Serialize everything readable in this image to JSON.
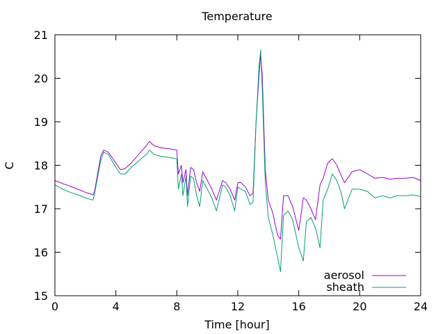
{
  "chart_data": {
    "type": "line",
    "title": "Temperature",
    "xlabel": "Time [hour]",
    "ylabel": "C",
    "xlim": [
      0,
      24
    ],
    "ylim": [
      15,
      21
    ],
    "xticks": [
      0,
      4,
      8,
      12,
      16,
      20,
      24
    ],
    "yticks": [
      15,
      16,
      17,
      18,
      19,
      20,
      21
    ],
    "grid": false,
    "legend": "bottom-right",
    "series": [
      {
        "name": "aerosol",
        "color": "#9400d3",
        "x": [
          0,
          0.5,
          1,
          1.5,
          2,
          2.5,
          2.6,
          3,
          3.2,
          3.5,
          4,
          4.3,
          4.6,
          5,
          5.5,
          6,
          6.2,
          6.5,
          7,
          7.5,
          8,
          8.1,
          8.3,
          8.4,
          8.6,
          8.7,
          8.9,
          9.1,
          9.3,
          9.5,
          9.7,
          10,
          10.3,
          10.6,
          11,
          11.2,
          11.5,
          11.8,
          12,
          12.2,
          12.5,
          12.8,
          13,
          13.2,
          13.4,
          13.5,
          13.6,
          13.8,
          14,
          14.3,
          14.6,
          14.8,
          15,
          15.3,
          15.6,
          16,
          16.3,
          16.5,
          16.8,
          17.1,
          17.4,
          17.6,
          17.9,
          18.2,
          18.5,
          18.8,
          19,
          19.5,
          20,
          20.5,
          21,
          21.5,
          22,
          22.5,
          23,
          23.5,
          24
        ],
        "y": [
          17.65,
          17.58,
          17.52,
          17.45,
          17.38,
          17.32,
          17.4,
          18.2,
          18.35,
          18.3,
          18.05,
          17.9,
          17.92,
          18.05,
          18.25,
          18.45,
          18.55,
          18.45,
          18.4,
          18.38,
          18.35,
          17.8,
          18.0,
          17.6,
          17.9,
          17.3,
          17.95,
          17.9,
          17.6,
          17.4,
          17.85,
          17.65,
          17.45,
          17.2,
          17.65,
          17.6,
          17.45,
          17.2,
          17.6,
          17.6,
          17.5,
          17.3,
          17.35,
          19.0,
          20.1,
          20.55,
          20.1,
          17.9,
          17.2,
          16.9,
          16.4,
          16.3,
          17.3,
          17.3,
          17.05,
          16.5,
          17.25,
          17.2,
          17.0,
          16.75,
          17.55,
          17.7,
          18.05,
          18.15,
          18.0,
          17.75,
          17.6,
          17.85,
          17.9,
          17.8,
          17.7,
          17.72,
          17.68,
          17.7,
          17.7,
          17.72,
          17.65
        ]
      },
      {
        "name": "sheath",
        "color": "#009e73",
        "x": [
          0,
          0.5,
          1,
          1.5,
          2,
          2.5,
          2.6,
          3,
          3.2,
          3.5,
          4,
          4.3,
          4.6,
          5,
          5.5,
          6,
          6.2,
          6.5,
          7,
          7.5,
          8,
          8.1,
          8.3,
          8.4,
          8.6,
          8.7,
          8.9,
          9.1,
          9.3,
          9.5,
          9.7,
          10,
          10.3,
          10.6,
          11,
          11.2,
          11.5,
          11.8,
          12,
          12.2,
          12.5,
          12.8,
          13,
          13.2,
          13.4,
          13.5,
          13.6,
          13.8,
          14,
          14.3,
          14.6,
          14.8,
          15,
          15.3,
          15.6,
          16,
          16.3,
          16.5,
          16.8,
          17.1,
          17.4,
          17.6,
          17.9,
          18.2,
          18.5,
          18.8,
          19,
          19.5,
          20,
          20.5,
          21,
          21.5,
          22,
          22.5,
          23,
          23.5,
          24
        ],
        "y": [
          17.55,
          17.45,
          17.38,
          17.32,
          17.25,
          17.2,
          17.35,
          18.1,
          18.3,
          18.25,
          17.95,
          17.8,
          17.8,
          17.95,
          18.1,
          18.25,
          18.35,
          18.25,
          18.2,
          18.18,
          18.15,
          17.45,
          17.8,
          17.3,
          17.75,
          17.05,
          17.75,
          17.7,
          17.3,
          17.05,
          17.65,
          17.45,
          17.25,
          16.95,
          17.55,
          17.5,
          17.3,
          16.95,
          17.5,
          17.45,
          17.4,
          17.1,
          17.15,
          19.0,
          20.3,
          20.65,
          19.8,
          17.6,
          16.8,
          16.4,
          15.9,
          15.55,
          16.85,
          16.95,
          16.75,
          16.1,
          15.8,
          16.7,
          16.8,
          16.55,
          16.1,
          17.2,
          17.45,
          17.8,
          17.65,
          17.35,
          17.0,
          17.45,
          17.45,
          17.4,
          17.25,
          17.3,
          17.25,
          17.3,
          17.3,
          17.32,
          17.28
        ]
      }
    ]
  }
}
